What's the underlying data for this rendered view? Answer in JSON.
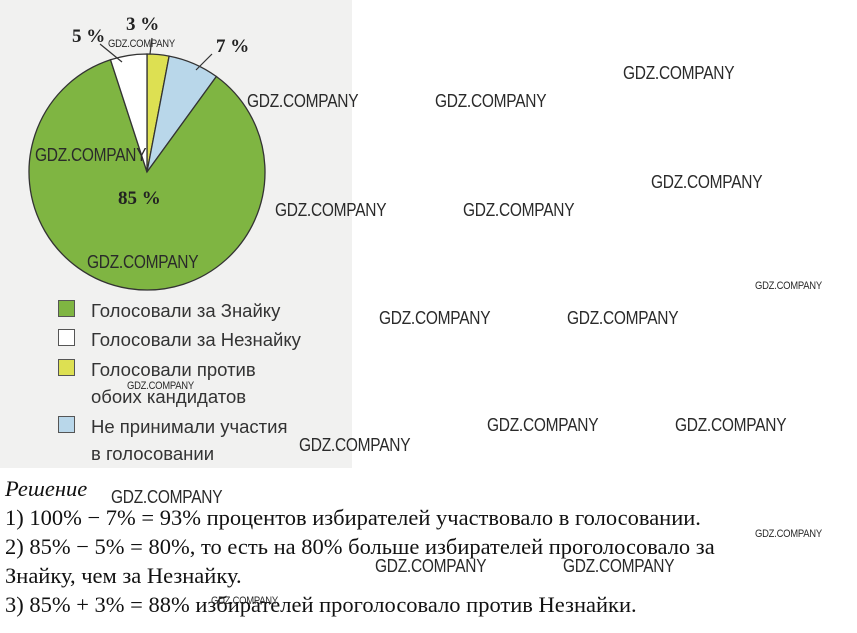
{
  "chart_data": {
    "type": "pie",
    "slices": [
      {
        "label": "Голосовали за Знайку",
        "value": 85,
        "display": "85 %",
        "color": "#7fb542"
      },
      {
        "label": "Голосовали за Незнайку",
        "value": 5,
        "display": "5 %",
        "color": "#ffffff"
      },
      {
        "label": "Голосовали против обоих кандидатов",
        "value": 3,
        "display": "3 %",
        "color": "#dde052"
      },
      {
        "label": "Не принимали участия в голосовании",
        "value": 7,
        "display": "7 %",
        "color": "#b9d7ea"
      }
    ],
    "legend": {
      "placement": "bottom",
      "items": [
        {
          "lines": [
            "Голосовали за Знайку"
          ],
          "color": "#7fb542"
        },
        {
          "lines": [
            "Голосовали за Незнайку"
          ],
          "color": "#ffffff"
        },
        {
          "lines": [
            "Голосовали против",
            "обоих кандидатов"
          ],
          "color": "#dde052"
        },
        {
          "lines": [
            "Не принимали участия",
            "в голосовании"
          ],
          "color": "#b9d7ea"
        }
      ]
    }
  },
  "solution": {
    "title": "Решение",
    "lines": [
      "1) 100% − 7% = 93% процентов избирателей участвовало в голосовании.",
      "2) 85% − 5% = 80%, то есть на 80% больше избирателей проголосовало за",
      "Знайку, чем за Незнайку.",
      "3) 85% + 3% = 88% избирателей проголосовало против Незнайки."
    ]
  },
  "watermark": "GDZ.COMPANY"
}
